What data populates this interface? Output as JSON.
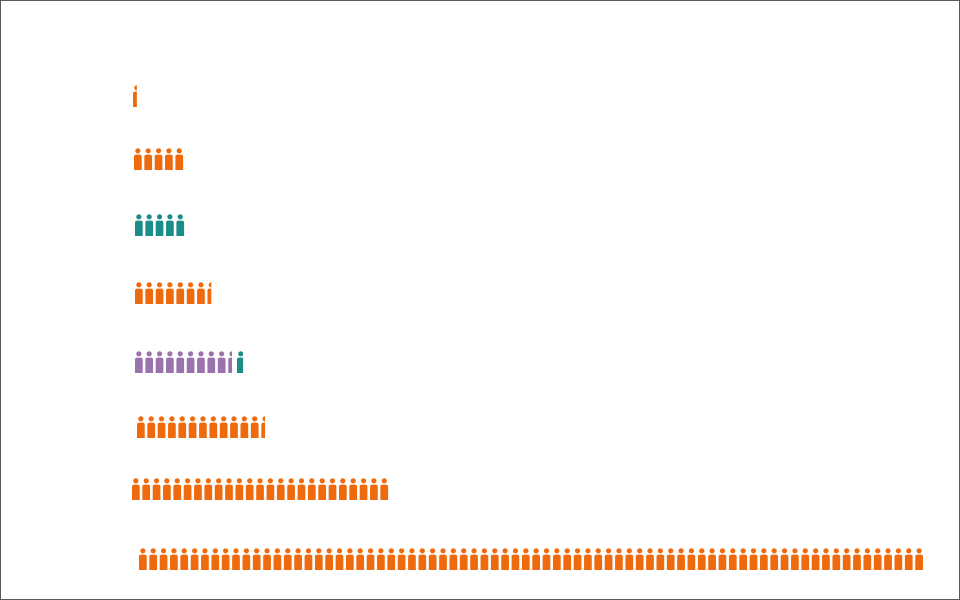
{
  "chart_data": {
    "type": "bar",
    "subtype": "pictogram",
    "icon": "person-icon",
    "title": "",
    "xlabel": "",
    "ylabel": "",
    "legend": "none",
    "grid": false,
    "colors": {
      "orange": "#ee6a0c",
      "teal": "#1a8d88",
      "purple": "#9a72ae"
    },
    "rows": [
      {
        "segments": [
          {
            "color": "orange",
            "value": 0.5
          }
        ]
      },
      {
        "segments": [
          {
            "color": "orange",
            "value": 5
          }
        ]
      },
      {
        "segments": [
          {
            "color": "teal",
            "value": 5
          }
        ]
      },
      {
        "segments": [
          {
            "color": "orange",
            "value": 7.5
          }
        ]
      },
      {
        "segments": [
          {
            "color": "purple",
            "value": 9.5
          },
          {
            "color": "teal",
            "value": 0.8
          }
        ]
      },
      {
        "segments": [
          {
            "color": "orange",
            "value": 12.5
          }
        ]
      },
      {
        "segments": [
          {
            "color": "orange",
            "value": 25
          }
        ]
      },
      {
        "segments": [
          {
            "color": "orange",
            "value": 76
          }
        ]
      }
    ]
  }
}
